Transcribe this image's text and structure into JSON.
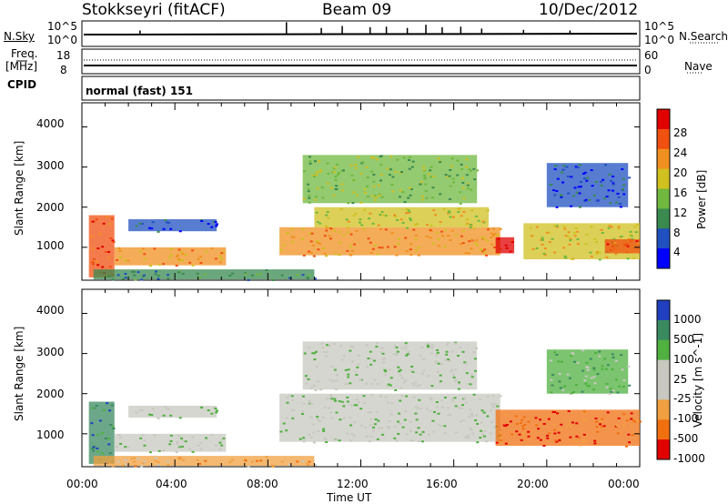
{
  "header": {
    "station": "Stokkseyri (fitACF)",
    "beam": "Beam 09",
    "date": "10/Dec/2012"
  },
  "panel_labels": {
    "nsky": "N.Sky",
    "nsky_top": "10^5",
    "nsky_bottom": "10^0",
    "nsearch": "N.Search",
    "nsearch_top": "10^5",
    "nsearch_bottom": "10^0",
    "freq_line1": "Freq.",
    "freq_line2": "[MHz]",
    "freq_top": "18",
    "freq_bottom": "8",
    "nave": "Nave",
    "nave_top": "60",
    "nave_bottom": "0",
    "cpid": "CPID",
    "cpid_text": "normal (fast) 151"
  },
  "chart_data": [
    {
      "type": "heatmap",
      "title": "",
      "ylabel": "Slant Range [km]",
      "xlabel": "",
      "ylim": [
        180,
        4600
      ],
      "y_ticks": [
        "1000",
        "2000",
        "3000",
        "4000"
      ],
      "x_ticks": [
        "00:00",
        "04:00",
        "08:00",
        "12:00",
        "16:00",
        "20:00",
        "00:00"
      ],
      "colorbar": {
        "label": "Power [dB]",
        "ticks": [
          "4",
          "8",
          "12",
          "16",
          "20",
          "24",
          "28"
        ],
        "colors": [
          "#0000ff",
          "#2050c0",
          "#3a8a50",
          "#70b840",
          "#d0c020",
          "#f09020",
          "#f05010",
          "#e00000"
        ]
      },
      "bands": [
        {
          "t0": 0.3,
          "t1": 1.4,
          "r0": 250,
          "r1": 1800,
          "level": 6
        },
        {
          "t0": 1.4,
          "t1": 6.2,
          "r0": 550,
          "r1": 1000,
          "level": 5
        },
        {
          "t0": 2.0,
          "t1": 5.8,
          "r0": 1400,
          "r1": 1700,
          "level": 1
        },
        {
          "t0": 0.5,
          "t1": 10.0,
          "r0": 200,
          "r1": 450,
          "level": 2
        },
        {
          "t0": 8.5,
          "t1": 18.0,
          "r0": 800,
          "r1": 1500,
          "level": 5
        },
        {
          "t0": 10.0,
          "t1": 17.5,
          "r0": 1500,
          "r1": 2000,
          "level": 4
        },
        {
          "t0": 9.5,
          "t1": 17.0,
          "r0": 2100,
          "r1": 3300,
          "level": 3
        },
        {
          "t0": 17.8,
          "t1": 18.6,
          "r0": 850,
          "r1": 1250,
          "level": 7
        },
        {
          "t0": 19.0,
          "t1": 24.0,
          "r0": 700,
          "r1": 1600,
          "level": 4
        },
        {
          "t0": 22.5,
          "t1": 24.0,
          "r0": 850,
          "r1": 1200,
          "level": 6
        },
        {
          "t0": 20.0,
          "t1": 23.5,
          "r0": 2000,
          "r1": 3100,
          "level": 1
        }
      ]
    },
    {
      "type": "heatmap",
      "title": "",
      "ylabel": "Slant Range [km]",
      "xlabel": "Time UT",
      "ylim": [
        180,
        4600
      ],
      "y_ticks": [
        "1000",
        "2000",
        "3000",
        "4000"
      ],
      "x_ticks": [
        "00:00",
        "04:00",
        "08:00",
        "12:00",
        "16:00",
        "20:00",
        "00:00"
      ],
      "colorbar": {
        "label": "Velocity [m s^-1]",
        "ticks": [
          "1000",
          "500",
          "100",
          "25",
          "-25",
          "-100",
          "-500",
          "-1000"
        ],
        "colors": [
          "#2040c0",
          "#3a8a60",
          "#50b040",
          "#c8c8c0",
          "#c8c8c0",
          "#f0a040",
          "#f07010",
          "#e00000"
        ]
      },
      "bands": [
        {
          "t0": 0.3,
          "t1": 1.4,
          "r0": 250,
          "r1": 1800,
          "level": 1
        },
        {
          "t0": 1.4,
          "t1": 6.2,
          "r0": 550,
          "r1": 1000,
          "level": 3
        },
        {
          "t0": 2.0,
          "t1": 5.8,
          "r0": 1400,
          "r1": 1700,
          "level": 3
        },
        {
          "t0": 0.5,
          "t1": 10.0,
          "r0": 200,
          "r1": 450,
          "level": 5
        },
        {
          "t0": 8.5,
          "t1": 18.0,
          "r0": 800,
          "r1": 2000,
          "level": 3
        },
        {
          "t0": 9.5,
          "t1": 17.0,
          "r0": 2100,
          "r1": 3300,
          "level": 3
        },
        {
          "t0": 17.8,
          "t1": 24.0,
          "r0": 700,
          "r1": 1600,
          "level": 6
        },
        {
          "t0": 20.0,
          "t1": 23.5,
          "r0": 2000,
          "r1": 3100,
          "level": 2
        }
      ]
    }
  ],
  "nsky_spikes": [
    {
      "t": 2.5,
      "v": 0.25
    },
    {
      "t": 8.8,
      "v": 0.9
    },
    {
      "t": 10.3,
      "v": 0.45
    },
    {
      "t": 11.2,
      "v": 0.6
    },
    {
      "t": 12.4,
      "v": 0.5
    },
    {
      "t": 13.1,
      "v": 0.55
    },
    {
      "t": 14.0,
      "v": 0.45
    },
    {
      "t": 14.8,
      "v": 0.7
    },
    {
      "t": 15.5,
      "v": 0.5
    },
    {
      "t": 16.3,
      "v": 0.55
    },
    {
      "t": 17.2,
      "v": 0.4
    },
    {
      "t": 19.0,
      "v": 0.3
    },
    {
      "t": 21.0,
      "v": 0.25
    }
  ]
}
